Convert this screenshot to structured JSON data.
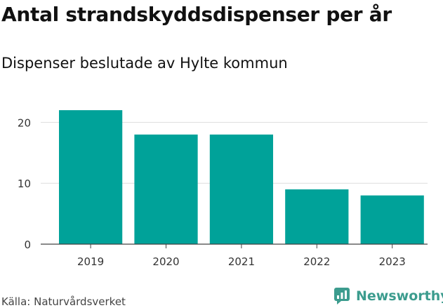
{
  "header": {
    "title": "Antal strandskyddsdispenser per år",
    "subtitle": "Dispenser beslutade av Hylte kommun"
  },
  "footer": {
    "source": "Källa: Naturvårdsverket",
    "brand": "Newsworthy",
    "brand_color": "#3c9c8e"
  },
  "chart_data": {
    "type": "bar",
    "title": "Antal strandskyddsdispenser per år",
    "subtitle": "Dispenser beslutade av Hylte kommun",
    "categories": [
      "2019",
      "2020",
      "2021",
      "2022",
      "2023"
    ],
    "values": [
      22,
      18,
      18,
      9,
      8
    ],
    "xlabel": "",
    "ylabel": "",
    "ylim": [
      0,
      25
    ],
    "yticks": [
      0,
      10,
      20
    ],
    "grid": true,
    "bar_color": "#00a299"
  }
}
